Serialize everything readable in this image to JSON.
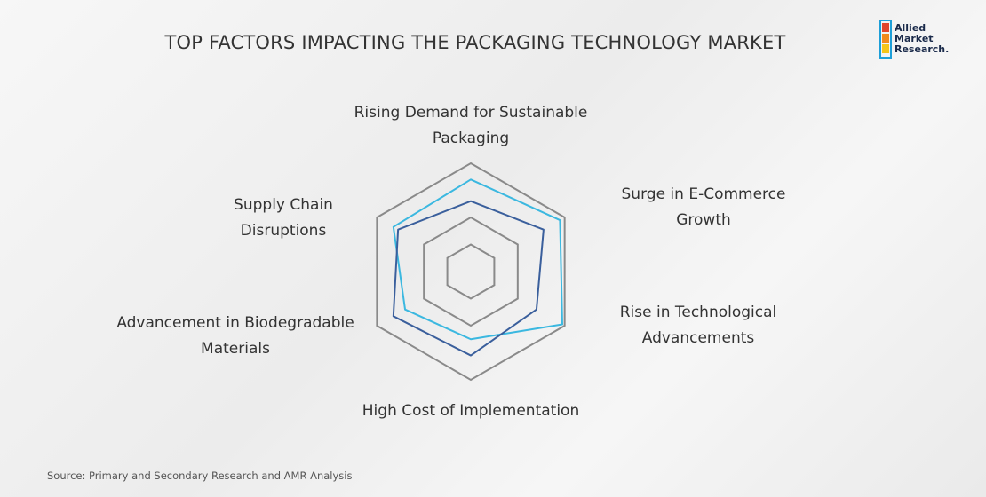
{
  "chart_data": {
    "type": "radar",
    "title": "TOP FACTORS IMPACTING THE PACKAGING TECHNOLOGY MARKET",
    "categories": [
      "Rising Demand for Sustainable Packaging",
      "Surge in E-Commerce Growth",
      "Rise in Technological Advancements",
      "High Cost of Implementation",
      "Advancement in Biodegradable Materials",
      "Supply Chain Disruptions"
    ],
    "series": [
      {
        "color": "#3bb8e0",
        "values": [
          3.4,
          3.8,
          3.9,
          2.5,
          2.8,
          3.3
        ]
      },
      {
        "color": "#3a5f9c",
        "values": [
          2.6,
          3.1,
          2.8,
          3.1,
          3.3,
          3.1
        ]
      }
    ],
    "ylim": [
      0,
      4
    ],
    "yticks": [
      1,
      2,
      4
    ],
    "grid": true,
    "grid_color": "#8a8a8a"
  },
  "logo": {
    "lines": [
      "Allied",
      "Market",
      "Research."
    ]
  },
  "source": "Source: Primary and Secondary Research and AMR Analysis"
}
